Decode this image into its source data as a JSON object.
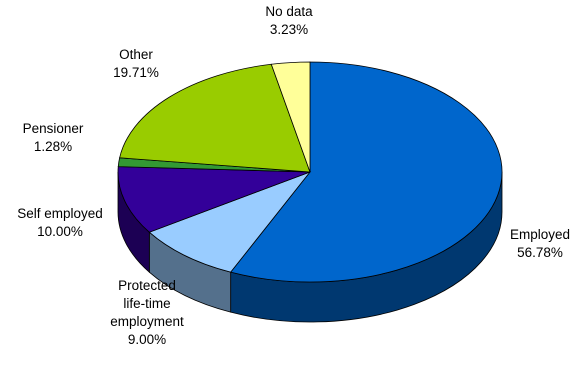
{
  "chart_data": {
    "type": "pie",
    "style": "3d",
    "title": "",
    "slices": [
      {
        "label": "Employed",
        "value": 56.78,
        "value_label": "56.78%",
        "color": "#0066CC"
      },
      {
        "label": "Protected life-time employment",
        "label_lines": [
          "Protected",
          "life-time",
          "employment"
        ],
        "value": 9.0,
        "value_label": "9.00%",
        "color": "#99CCFF"
      },
      {
        "label": "Self employed",
        "value": 10.0,
        "value_label": "10.00%",
        "color": "#330099"
      },
      {
        "label": "Pensioner",
        "value": 1.28,
        "value_label": "1.28%",
        "color": "#339933"
      },
      {
        "label": "Other",
        "value": 19.71,
        "value_label": "19.71%",
        "color": "#99CC00"
      },
      {
        "label": "No data",
        "value": 3.23,
        "value_label": "3.23%",
        "color": "#FFFF99"
      }
    ]
  }
}
